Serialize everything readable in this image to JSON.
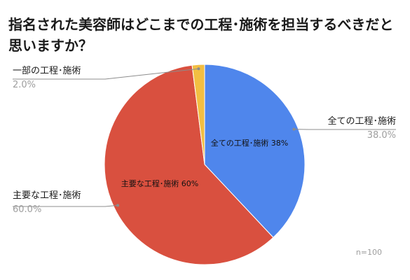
{
  "title": "指名された美容師はどこまでの工程･施術を担当するべきだと思いますか？",
  "sample_note": "n=100",
  "colors": {
    "blue": "#4f86ec",
    "red": "#d9503f",
    "yellow": "#f2be42",
    "label_pct": "#9e9e9e",
    "leader": "#8c8c8c"
  },
  "chart_data": {
    "type": "pie",
    "slices": [
      {
        "label": "全ての工程･施術",
        "value": 38.0,
        "percent_label": "38.0%",
        "inner_label": "全ての工程･施術 38%",
        "color": "#4f86ec"
      },
      {
        "label": "主要な工程･施術",
        "value": 60.0,
        "percent_label": "60.0%",
        "inner_label": "主要な工程･施術 60%",
        "color": "#d9503f"
      },
      {
        "label": "一部の工程･施術",
        "value": 2.0,
        "percent_label": "2.0%",
        "inner_label": "",
        "color": "#f2be42"
      }
    ],
    "legend": "none (leader-line labels)"
  }
}
